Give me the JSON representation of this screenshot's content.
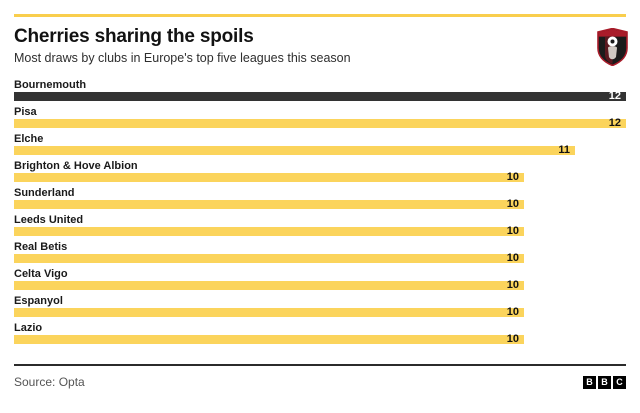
{
  "header": {
    "title": "Cherries sharing the spoils",
    "subtitle": "Most draws by clubs in Europe's top five leagues this season",
    "crest_icon": "afc-bournemouth-crest"
  },
  "chart_data": {
    "type": "bar",
    "orientation": "horizontal",
    "categories": [
      "Bournemouth",
      "Pisa",
      "Elche",
      "Brighton & Hove Albion",
      "Sunderland",
      "Leeds United",
      "Real Betis",
      "Celta Vigo",
      "Espanyol",
      "Lazio"
    ],
    "values": [
      12,
      12,
      11,
      10,
      10,
      10,
      10,
      10,
      10,
      10
    ],
    "xlim": [
      0,
      12
    ],
    "highlight_index": 0,
    "value_labels_shown": true,
    "grid": false,
    "legend": "none",
    "bar_color": "#FBD45C",
    "highlight_bar_color": "#333333",
    "accent_rule_color": "#F9CE4D"
  },
  "footer": {
    "source": "Source: Opta",
    "logo_letters": [
      "B",
      "B",
      "C"
    ]
  }
}
